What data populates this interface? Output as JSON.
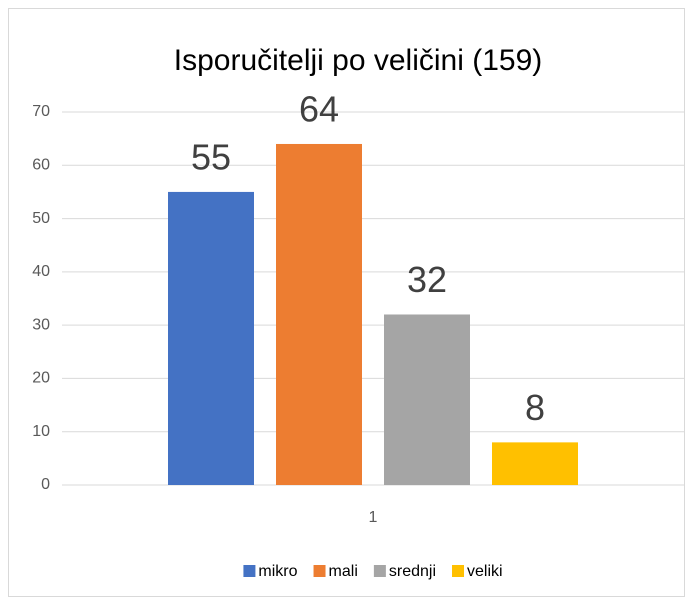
{
  "chart_data": {
    "type": "bar",
    "title": "Isporučitelji po veličini (159)",
    "categories": [
      "1"
    ],
    "series": [
      {
        "name": "mikro",
        "color": "#4472c4",
        "values": [
          55
        ]
      },
      {
        "name": "mali",
        "color": "#ed7d31",
        "values": [
          64
        ]
      },
      {
        "name": "srednji",
        "color": "#a5a5a5",
        "values": [
          32
        ]
      },
      {
        "name": "veliki",
        "color": "#ffc000",
        "values": [
          8
        ]
      }
    ],
    "ylim": [
      0,
      70
    ],
    "yticks": [
      0,
      10,
      20,
      30,
      40,
      50,
      60,
      70
    ],
    "grid": true,
    "legend": "bottom"
  }
}
